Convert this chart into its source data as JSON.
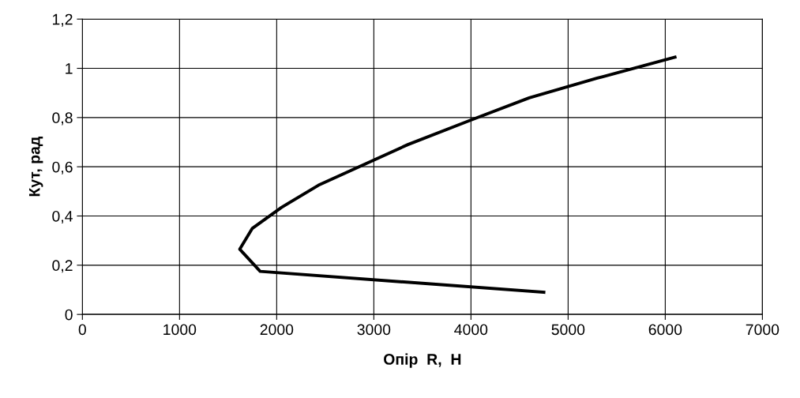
{
  "chart_data": {
    "type": "line",
    "xlabel": "Опір  R,  Н",
    "ylabel": "Кут, рад",
    "x": [
      4750,
      1830,
      1620,
      1750,
      2050,
      2430,
      3350,
      4000,
      4600,
      5300,
      6100
    ],
    "series": [
      {
        "color": "#000000",
        "values": [
          0.09,
          0.175,
          0.265,
          0.35,
          0.435,
          0.525,
          0.69,
          0.79,
          0.88,
          0.96,
          1.045
        ]
      }
    ],
    "xlim": [
      0,
      7000
    ],
    "xticks": [
      0,
      1000,
      2000,
      3000,
      4000,
      5000,
      6000,
      7000
    ],
    "ylim": [
      0,
      1.2
    ],
    "yticks": [
      0,
      {
        "value": 0.2,
        "label": "0,2"
      },
      {
        "value": 0.4,
        "label": "0,4"
      },
      {
        "value": 0.6,
        "label": "0,6"
      },
      {
        "value": 0.8,
        "label": "0,8"
      },
      1,
      {
        "value": 1.2,
        "label": "1,2"
      }
    ],
    "grid": true,
    "marker": "none",
    "line_style": "solid",
    "legend": false
  }
}
